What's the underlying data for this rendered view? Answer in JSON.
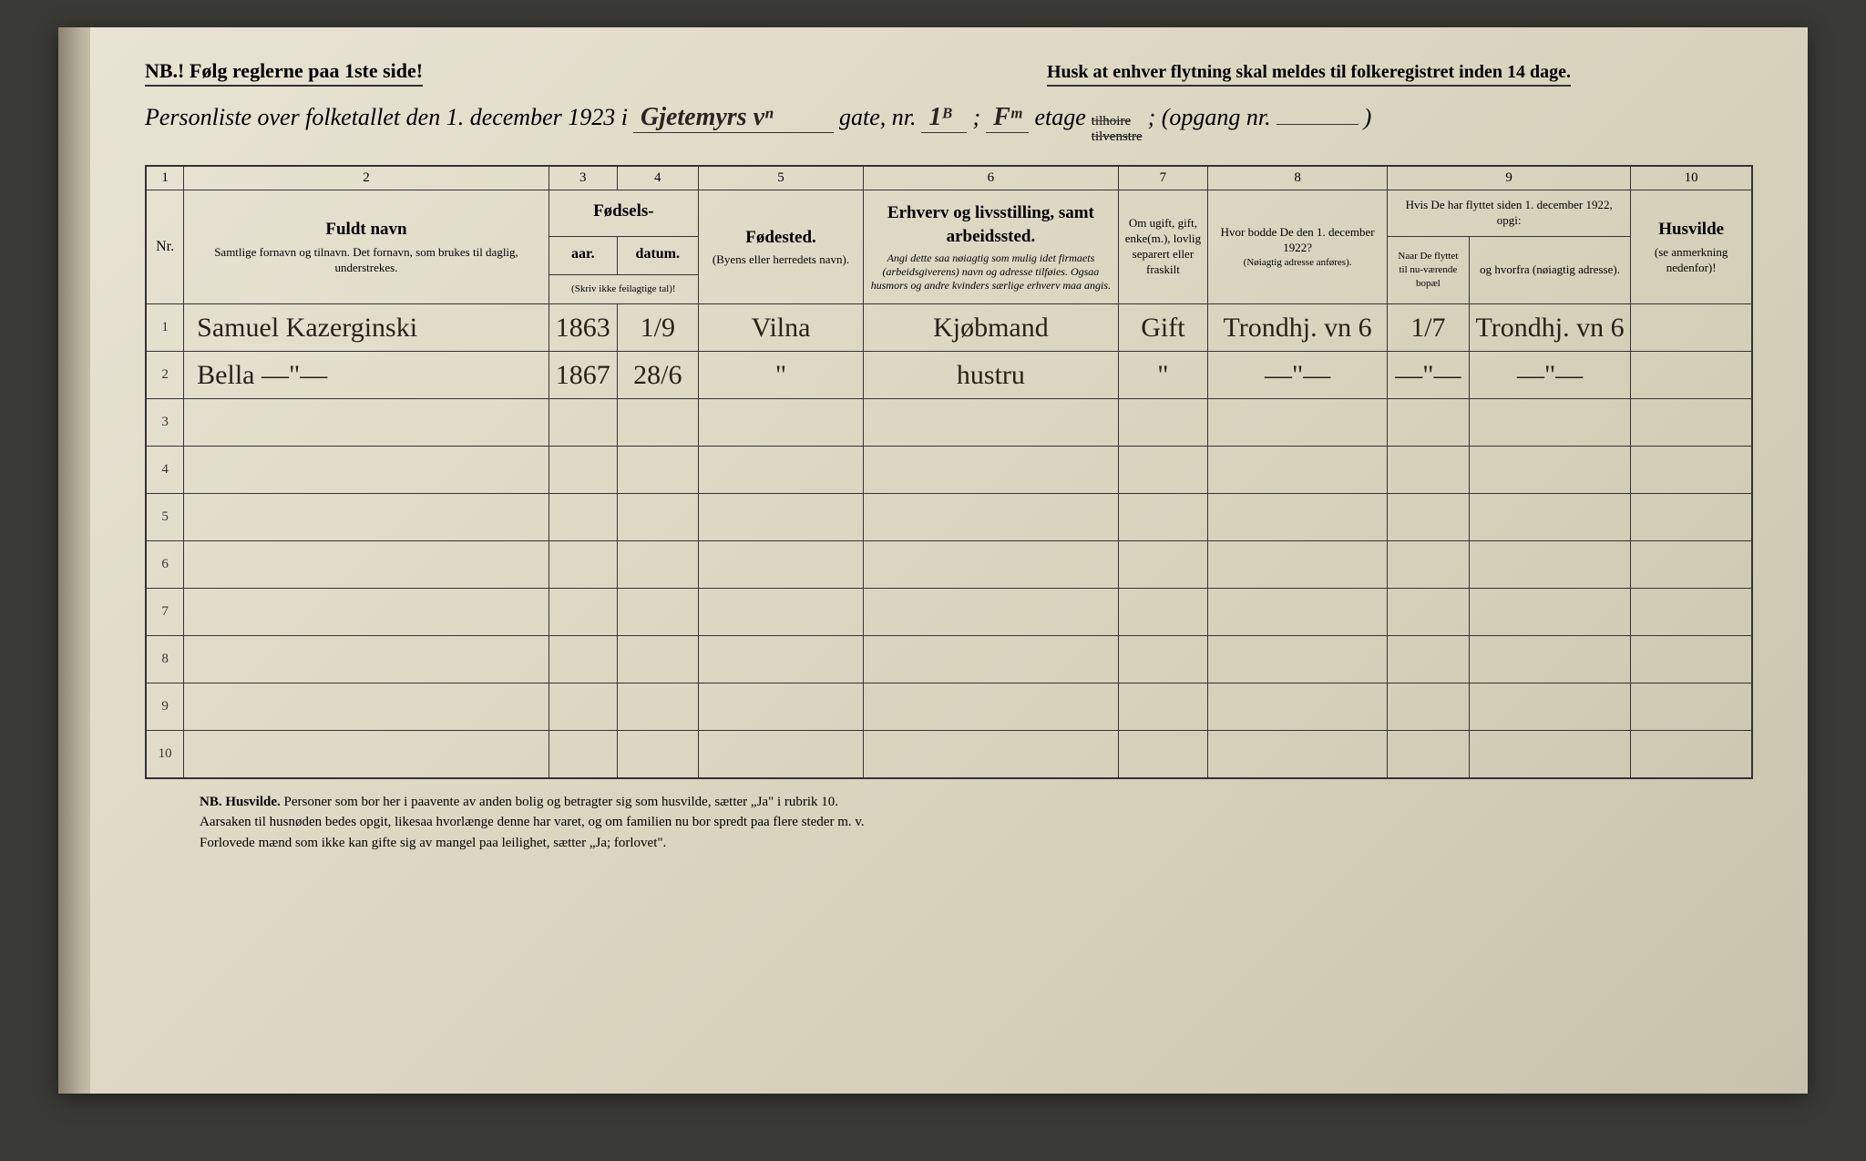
{
  "header": {
    "nb_left": "NB.! Følg reglerne paa 1ste side!",
    "reminder": "Husk at enhver flytning skal meldes til folkeregistret inden 14 dage.",
    "title_prefix": "Personliste over folketallet den 1. december 1923 i",
    "street_handwritten": "Gjetemyrs vⁿ",
    "gate_label": "gate, nr.",
    "number_handwritten": "1ᴮ",
    "semicolon1": ";",
    "etage_hand": "Fᵐ",
    "etage_label": "etage",
    "tilhoire": "tilhoire",
    "tilvenstre": "tilvenstre",
    "opgang": "; (opgang nr.",
    "closing": ")"
  },
  "columns": {
    "numbers": [
      "1",
      "2",
      "3",
      "4",
      "5",
      "6",
      "7",
      "8",
      "9",
      "10"
    ],
    "c1": "Nr.",
    "c2_main": "Fuldt navn",
    "c2_sub": "Samtlige fornavn og tilnavn. Det fornavn, som brukes til daglig, understrekes.",
    "c34_top": "Fødsels-",
    "c3": "aar.",
    "c4": "datum.",
    "c34_sub": "(Skriv ikke feilagtige tal)!",
    "c5_main": "Fødested.",
    "c5_sub": "(Byens eller herredets navn).",
    "c6_main": "Erhverv og livsstilling, samt arbeidssted.",
    "c6_sub": "Angi dette saa nøiagtig som mulig idet firmaets (arbeidsgiverens) navn og adresse tilføies. Ogsaa husmors og andre kvinders særlige erhverv maa angis.",
    "c7": "Om ugift, gift, enke(m.), lovlig separert eller fraskilt",
    "c8_main": "Hvor bodde De den 1. december 1922?",
    "c8_sub": "(Nøiagtig adresse anføres).",
    "c9_top": "Hvis De har flyttet siden 1. december 1922, opgi:",
    "c9a": "Naar De flyttet til nu-værende bopæl",
    "c9b": "og hvorfra (nøiagtig adresse).",
    "c10_main": "Husvilde",
    "c10_sub": "(se anmerkning nedenfor)!"
  },
  "rows": [
    {
      "nr": "1",
      "name": "Samuel Kazerginski",
      "year": "1863",
      "date": "1/9",
      "birthplace": "Vilna",
      "occupation": "Kjøbmand",
      "marital": "Gift",
      "addr1922": "Trondhj. vn 6",
      "moved_when": "1/7",
      "moved_from": "Trondhj. vn 6",
      "checked": true
    },
    {
      "nr": "2",
      "name": "Bella   —\"—",
      "year": "1867",
      "date": "28/6",
      "birthplace": "\"",
      "occupation": "hustru",
      "marital": "\"",
      "addr1922": "—\"—",
      "moved_when": "—\"—",
      "moved_from": "—\"—",
      "checked": true
    }
  ],
  "empty_rows": [
    "3",
    "4",
    "5",
    "6",
    "7",
    "8",
    "9",
    "10"
  ],
  "footer": {
    "line1_label": "NB. Husvilde.",
    "line1": "Personer som bor her i paavente av anden bolig og betragter sig som husvilde, sætter „Ja\" i rubrik 10.",
    "line2": "Aarsaken til husnøden bedes opgit, likesaa hvorlænge denne har varet, og om familien nu bor spredt paa flere steder m. v.",
    "line3": "Forlovede mænd som ikke kan gifte sig av mangel paa leilighet, sætter „Ja; forlovet\"."
  },
  "styling": {
    "page_bg": "#ddd8c4",
    "border_color": "#333333",
    "ink_color": "#2a2018",
    "print_color": "#333333",
    "handwriting_font": "Brush Script MT",
    "print_font": "Times New Roman"
  }
}
